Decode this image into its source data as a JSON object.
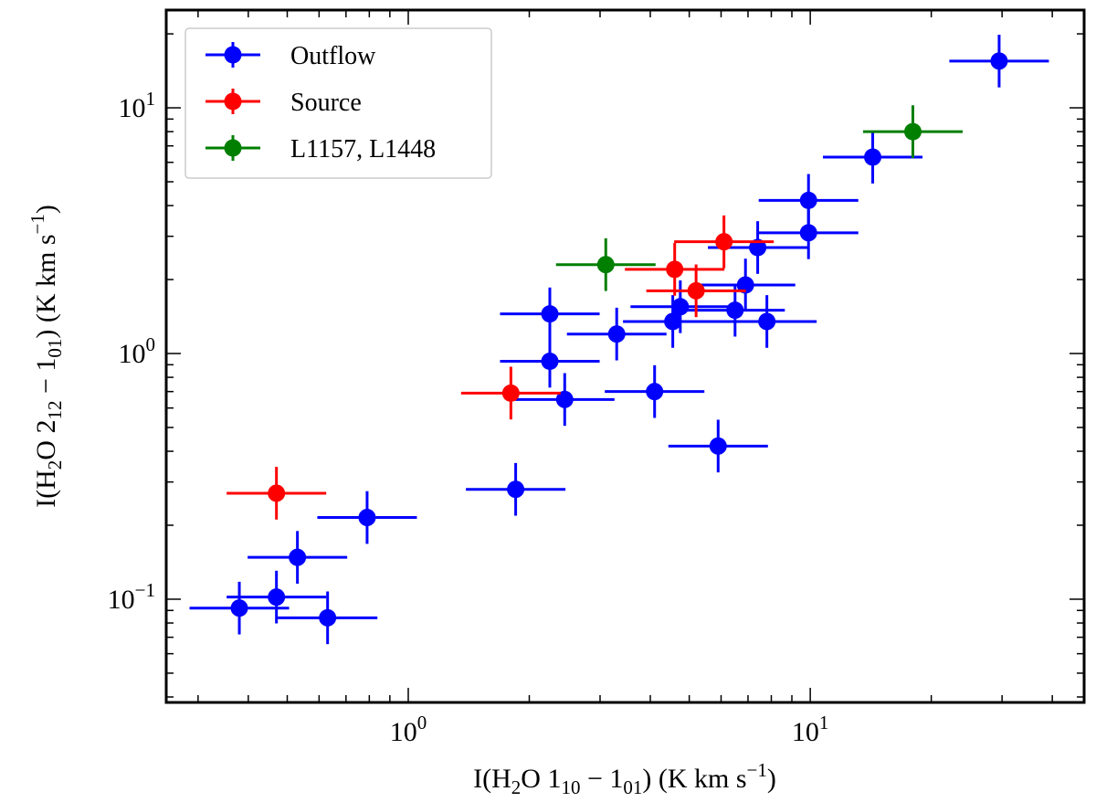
{
  "chart_data": {
    "type": "scatter",
    "xscale": "log",
    "yscale": "log",
    "xlim": [
      0.25,
      48
    ],
    "ylim": [
      0.038,
      25
    ],
    "xlabel": {
      "pre": "I(H",
      "sub1": "2",
      "mid": "O 1",
      "sub2": "10",
      "minus": " − 1",
      "sub3": "01",
      "post": ") (K km s",
      "sup": "−1",
      "end": ")"
    },
    "ylabel": {
      "pre": "I(H",
      "sub1": "2",
      "mid": "O 2",
      "sub2": "12",
      "minus": " − 1",
      "sub3": "01",
      "post": ") (K km s",
      "sup": "−1",
      "end": ")"
    },
    "xticks": [
      {
        "value": 1,
        "base": "10",
        "exp": "0"
      },
      {
        "value": 10,
        "base": "10",
        "exp": "1"
      }
    ],
    "yticks": [
      {
        "value": 0.1,
        "base": "10",
        "exp": "−1"
      },
      {
        "value": 1,
        "base": "10",
        "exp": "0"
      },
      {
        "value": 10,
        "base": "10",
        "exp": "1"
      }
    ],
    "legend_position": "top-left",
    "series": [
      {
        "name": "Outflow",
        "color": "#0000ff",
        "points": [
          {
            "x": 0.38,
            "y": 0.092
          },
          {
            "x": 0.47,
            "y": 0.102
          },
          {
            "x": 0.53,
            "y": 0.148
          },
          {
            "x": 0.63,
            "y": 0.084
          },
          {
            "x": 0.79,
            "y": 0.215
          },
          {
            "x": 1.85,
            "y": 0.28
          },
          {
            "x": 2.25,
            "y": 0.93
          },
          {
            "x": 2.25,
            "y": 1.45
          },
          {
            "x": 2.45,
            "y": 0.65
          },
          {
            "x": 3.3,
            "y": 1.2
          },
          {
            "x": 4.1,
            "y": 0.7
          },
          {
            "x": 4.55,
            "y": 1.35
          },
          {
            "x": 4.75,
            "y": 1.55
          },
          {
            "x": 5.9,
            "y": 0.42
          },
          {
            "x": 6.5,
            "y": 1.5
          },
          {
            "x": 6.9,
            "y": 1.9
          },
          {
            "x": 7.4,
            "y": 2.7
          },
          {
            "x": 7.8,
            "y": 1.35
          },
          {
            "x": 9.9,
            "y": 4.2
          },
          {
            "x": 9.9,
            "y": 3.1
          },
          {
            "x": 14.3,
            "y": 6.3
          },
          {
            "x": 29.5,
            "y": 15.5
          }
        ]
      },
      {
        "name": "Source",
        "color": "#ff0000",
        "points": [
          {
            "x": 0.47,
            "y": 0.27
          },
          {
            "x": 1.8,
            "y": 0.69
          },
          {
            "x": 4.6,
            "y": 2.2
          },
          {
            "x": 5.2,
            "y": 1.8
          },
          {
            "x": 6.1,
            "y": 2.85
          }
        ]
      },
      {
        "name": "L1157, L1448",
        "color": "#007f00",
        "points": [
          {
            "x": 3.1,
            "y": 2.3
          },
          {
            "x": 18.0,
            "y": 8.0
          }
        ]
      }
    ]
  }
}
